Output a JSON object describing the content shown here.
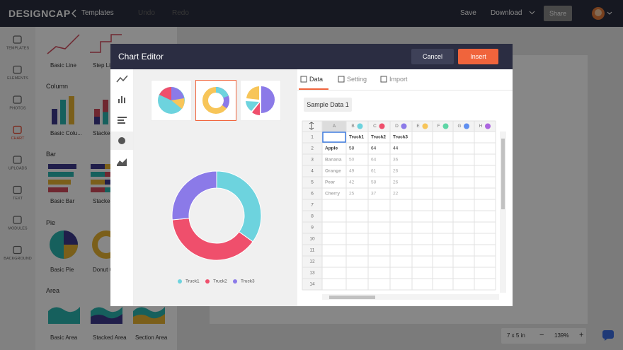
{
  "topbar": {
    "logo": "DESIGNCAP",
    "back": "Templates",
    "undo": "Undo",
    "redo": "Redo",
    "save": "Save",
    "download": "Download",
    "share": "Share"
  },
  "sidebar": [
    "TEMPLATES",
    "ELEMENTS",
    "PHOTOS",
    "CHART",
    "UPLOADS",
    "TEXT",
    "MODULES",
    "BACKGROUND"
  ],
  "panel": {
    "items_top": [
      "Basic Line",
      "Step Line"
    ],
    "sections": [
      {
        "title": "Column",
        "items": [
          "Basic Colu...",
          "Stacked Column"
        ]
      },
      {
        "title": "Bar",
        "items": [
          "Basic Bar",
          "Stacked Bar"
        ]
      },
      {
        "title": "Pie",
        "items": [
          "Basic Pie",
          "Donut Chart"
        ]
      },
      {
        "title": "Area",
        "items": [
          "Basic Area",
          "Stacked Area",
          "Section Area"
        ]
      }
    ]
  },
  "zoom": {
    "size": "7 x 5 in",
    "minus": "−",
    "percent": "139%",
    "plus": "+"
  },
  "modal": {
    "title": "Chart Editor",
    "cancel": "Cancel",
    "insert": "Insert",
    "tabs": [
      "Data",
      "Setting",
      "Import"
    ],
    "sample": "Sample Data 1",
    "sheet": {
      "columns": [
        {
          "label": "A"
        },
        {
          "label": "B",
          "color": "#6dd3de"
        },
        {
          "label": "C",
          "color": "#ef4f6c"
        },
        {
          "label": "D",
          "color": "#8b7ae8"
        },
        {
          "label": "E",
          "color": "#f7c559"
        },
        {
          "label": "F",
          "color": "#5ed6a6"
        },
        {
          "label": "G",
          "color": "#5f8ff0"
        },
        {
          "label": "H",
          "color": "#ac66e0"
        }
      ],
      "row_numbers": [
        1,
        2,
        3,
        4,
        5,
        6,
        7,
        8,
        9,
        10,
        11,
        12,
        13,
        14
      ],
      "series": [
        "Truck1",
        "Truck2",
        "Truck3"
      ],
      "rows": [
        {
          "label": "Apple",
          "values": [
            58,
            64,
            44
          ]
        },
        {
          "label": "Banana",
          "values": [
            50,
            64,
            36
          ]
        },
        {
          "label": "Orange",
          "values": [
            49,
            61,
            26
          ]
        },
        {
          "label": "Pear",
          "values": [
            42,
            58,
            26
          ]
        },
        {
          "label": "Cherry",
          "values": [
            25,
            37,
            22
          ]
        }
      ]
    }
  }
}
